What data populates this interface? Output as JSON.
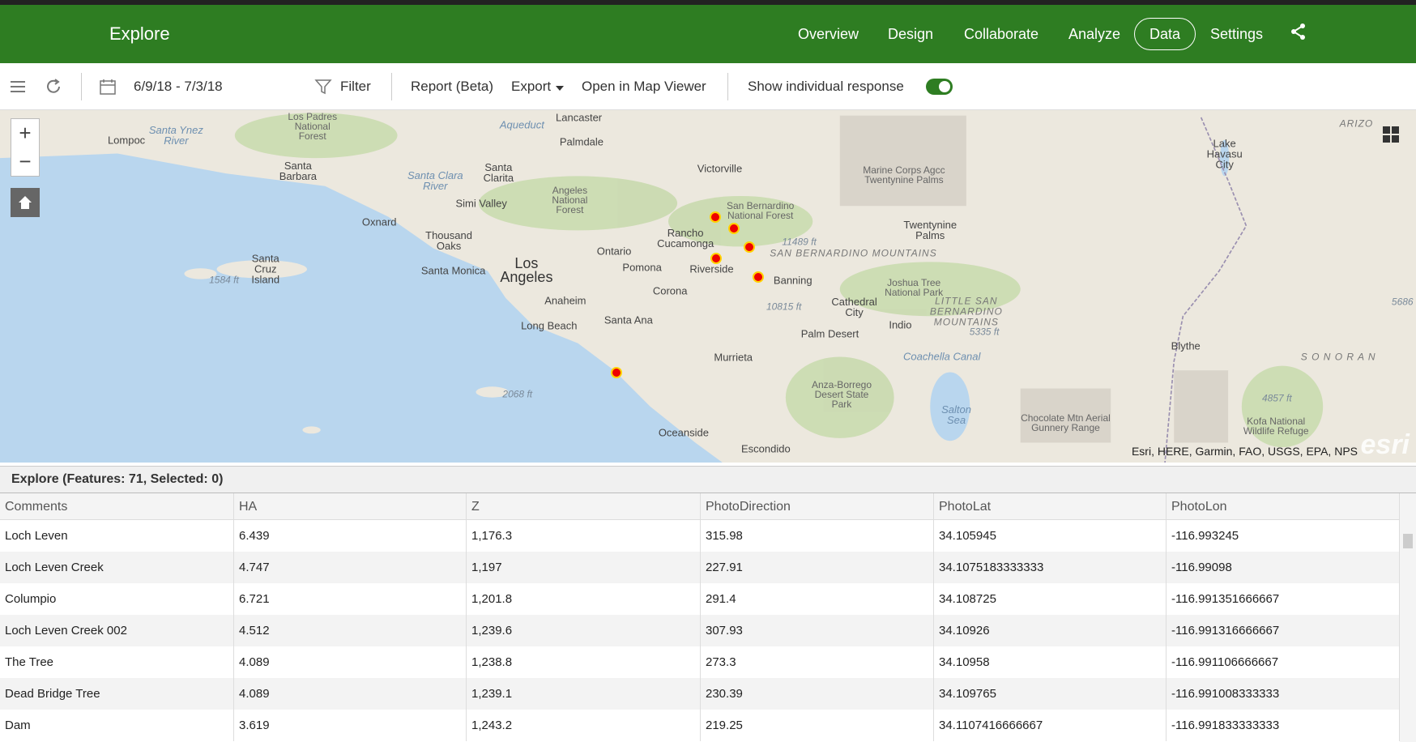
{
  "header": {
    "title": "Explore",
    "nav": [
      "Overview",
      "Design",
      "Collaborate",
      "Analyze",
      "Data",
      "Settings"
    ]
  },
  "toolbar": {
    "date_range": "6/9/18 - 7/3/18",
    "filter": "Filter",
    "report": "Report (Beta)",
    "export": "Export",
    "map_viewer": "Open in Map Viewer",
    "toggle_label": "Show individual response"
  },
  "map": {
    "labels": [
      "Lancaster",
      "Palmdale",
      "Los Padres National Forest",
      "Lompoc",
      "Santa Ynez River",
      "Aqueduct",
      "Santa Barbara",
      "Victorville",
      "Santa Clarita",
      "Santa Clara River",
      "Angeles National Forest",
      "San Bernardino National Forest",
      "Marine Corps Agcc Twentynine Palms",
      "Lake Havasu City",
      "ARIZO",
      "Simi Valley",
      "Oxnard",
      "Thousand Oaks",
      "Rancho Cucamonga",
      "Ontario",
      "11489 ft",
      "SAN BERNARDINO MOUNTAINS",
      "Twentynine Palms",
      "Los Angeles",
      "Santa Monica",
      "Pomona",
      "Riverside",
      "Banning",
      "Santa Cruz Island",
      "1584 ft",
      "Joshua Tree National Park",
      "Corona",
      "Anaheim",
      "Cathedral City",
      "LITTLE SAN BERNARDINO MOUNTAINS",
      "10815 ft",
      "Indio",
      "Santa Ana",
      "Long Beach",
      "5335 ft",
      "Palm Desert",
      "Blythe",
      "S O N O R A N",
      "5686",
      "Murrieta",
      "Coachella Canal",
      "2068 ft",
      "Anza-Borrego Desert State Park",
      "Salton Sea",
      "4857 ft",
      "Chocolate Mtn Aerial Gunnery Range",
      "Kofa National Wildlife Refuge",
      "Oceanside",
      "Escondido"
    ],
    "attribution": "Esri, HERE, Garmin, FAO, USGS, EPA, NPS",
    "logo": "esri"
  },
  "table": {
    "title": "Explore (Features: 71, Selected: 0)",
    "columns": [
      "Comments",
      "HA",
      "Z",
      "PhotoDirection",
      "PhotoLat",
      "PhotoLon"
    ],
    "rows": [
      [
        "Loch Leven",
        "6.439",
        "1,176.3",
        "315.98",
        "34.105945",
        "-116.993245"
      ],
      [
        "Loch Leven Creek",
        "4.747",
        "1,197",
        "227.91",
        "34.1075183333333",
        "-116.99098"
      ],
      [
        "Columpio",
        "6.721",
        "1,201.8",
        "291.4",
        "34.108725",
        "-116.991351666667"
      ],
      [
        "Loch Leven Creek 002",
        "4.512",
        "1,239.6",
        "307.93",
        "34.10926",
        "-116.991316666667"
      ],
      [
        "The Tree",
        "4.089",
        "1,238.8",
        "273.3",
        "34.10958",
        "-116.991106666667"
      ],
      [
        "Dead Bridge Tree",
        "4.089",
        "1,239.1",
        "230.39",
        "34.109765",
        "-116.991008333333"
      ],
      [
        "Dam",
        "3.619",
        "1,243.2",
        "219.25",
        "34.1107416666667",
        "-116.991833333333"
      ]
    ]
  }
}
